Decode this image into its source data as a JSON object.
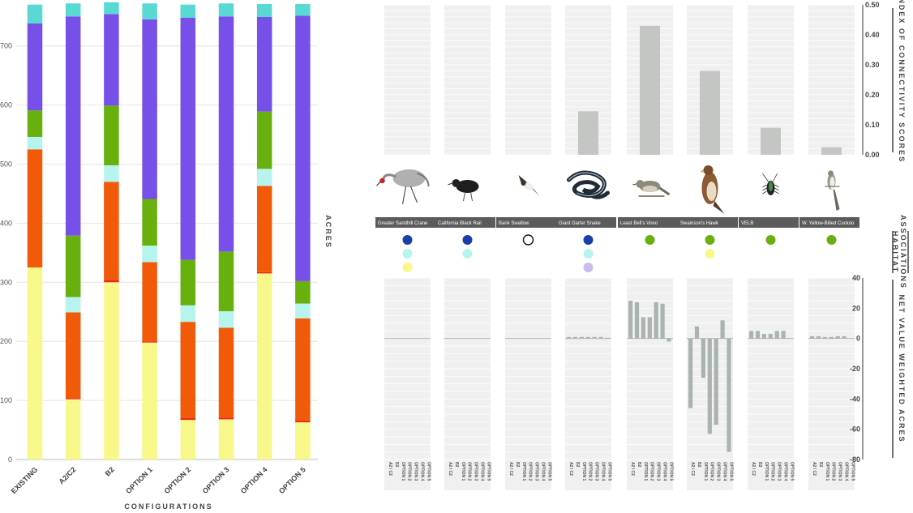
{
  "chart_data": [
    {
      "type": "bar",
      "stacked": true,
      "xlabel": "CONFIGURATIONS",
      "ylabel": "ACRES",
      "ylim": [
        0,
        760
      ],
      "yticks": [
        0,
        100,
        200,
        300,
        400,
        500,
        600,
        700
      ],
      "categories": [
        "EXISTING",
        "A2/C2",
        "B2",
        "OPTION 1",
        "OPTION 2",
        "OPTION 3",
        "OPTION 4",
        "OPTION 5"
      ],
      "series": [
        {
          "color": "#f8f88a",
          "values": [
            325,
            102,
            300,
            198,
            67,
            68,
            315,
            63
          ]
        },
        {
          "color": "#e8281e",
          "values": [
            0,
            2,
            4,
            2,
            3,
            3,
            2,
            3
          ]
        },
        {
          "color": "#f05a08",
          "values": [
            200,
            145,
            166,
            134,
            163,
            152,
            146,
            173
          ]
        },
        {
          "color": "#b8f4ee",
          "values": [
            21,
            26,
            28,
            28,
            28,
            28,
            29,
            25
          ]
        },
        {
          "color": "#68b00e",
          "values": [
            45,
            104,
            101,
            79,
            77,
            101,
            97,
            38
          ]
        },
        {
          "color": "#7650e8",
          "values": [
            147,
            371,
            155,
            304,
            410,
            398,
            160,
            449
          ]
        },
        {
          "color": "#5ad8d4",
          "values": [
            32,
            22,
            20,
            27,
            22,
            22,
            22,
            20
          ]
        }
      ],
      "grid": true
    },
    {
      "type": "bar",
      "ylabel": "INDEX OF CONNECTIVITY SCORES",
      "ylim": [
        0,
        0.5
      ],
      "yticks": [
        "0.50",
        "0.40",
        "0.30",
        "0.20",
        "0.10",
        "0.00"
      ],
      "categories": [
        "Greater Sandhill Crane",
        "California Black Rail",
        "Bank Swallow",
        "Giant Garter Snake",
        "Least Bell's Vireo",
        "Swainson's Hawk",
        "VELB",
        "W. Yellow-Billed Cuckoo"
      ],
      "values": [
        0,
        0,
        0,
        0.145,
        0.43,
        0.28,
        0.09,
        0.025
      ]
    },
    {
      "type": "bar",
      "ylabel": "NET VALUE WEIGHTED ACRES",
      "ylim": [
        -80,
        40
      ],
      "yticks": [
        "40",
        "20",
        "0",
        "-20",
        "-40",
        "-60",
        "-80"
      ],
      "options": [
        "A2 / C2",
        "B2",
        "OPTION 1",
        "OPTION 2",
        "OPTION 3",
        "OPTION 4",
        "OPTION 5"
      ],
      "series": [
        {
          "name": "Greater Sandhill Crane",
          "values": [
            0,
            0,
            0,
            0,
            0,
            0,
            0
          ]
        },
        {
          "name": "California Black Rail",
          "values": [
            0,
            0,
            0,
            0,
            0,
            0,
            0
          ]
        },
        {
          "name": "Bank Swallow",
          "values": [
            0,
            0,
            0,
            0,
            0,
            0,
            0
          ]
        },
        {
          "name": "Giant Garter Snake",
          "values": [
            1,
            1,
            1,
            1,
            1,
            1,
            0.5
          ]
        },
        {
          "name": "Least Bell's Vireo",
          "values": [
            25,
            24,
            14,
            14,
            24,
            23,
            -2
          ]
        },
        {
          "name": "Swainson's Hawk",
          "values": [
            -46,
            8,
            -26,
            -63,
            -57,
            12,
            -75
          ]
        },
        {
          "name": "VELB",
          "values": [
            5,
            5,
            3,
            3,
            5,
            5,
            0
          ]
        },
        {
          "name": "W. Yellow-Billed Cuckoo",
          "values": [
            1.5,
            1.5,
            1,
            1,
            1.5,
            1.5,
            0
          ]
        }
      ]
    }
  ],
  "habitat": {
    "title": "HABITAT ASSOCIATIONS",
    "dots": [
      [
        {
          "fill": "#1a3fa8"
        },
        {
          "fill": "#b8f4ee"
        },
        {
          "fill": "#f8f88a"
        }
      ],
      [
        {
          "fill": "#1a3fa8"
        },
        {
          "fill": "#b8f4ee"
        }
      ],
      [
        {
          "fill": "#ffffff",
          "outline": "#111111"
        }
      ],
      [
        {
          "fill": "#1a3fa8"
        },
        {
          "fill": "#b8f4ee"
        },
        {
          "fill": "#cbbcf0"
        }
      ],
      [
        {
          "fill": "#68b00e"
        }
      ],
      [
        {
          "fill": "#68b00e"
        },
        {
          "fill": "#f8f88a"
        }
      ],
      [
        {
          "fill": "#68b00e"
        }
      ],
      [
        {
          "fill": "#68b00e"
        }
      ]
    ]
  },
  "species_icons": [
    "crane-icon",
    "rail-icon",
    "swallow-icon",
    "snake-icon",
    "vireo-icon",
    "hawk-icon",
    "beetle-icon",
    "cuckoo-icon"
  ]
}
